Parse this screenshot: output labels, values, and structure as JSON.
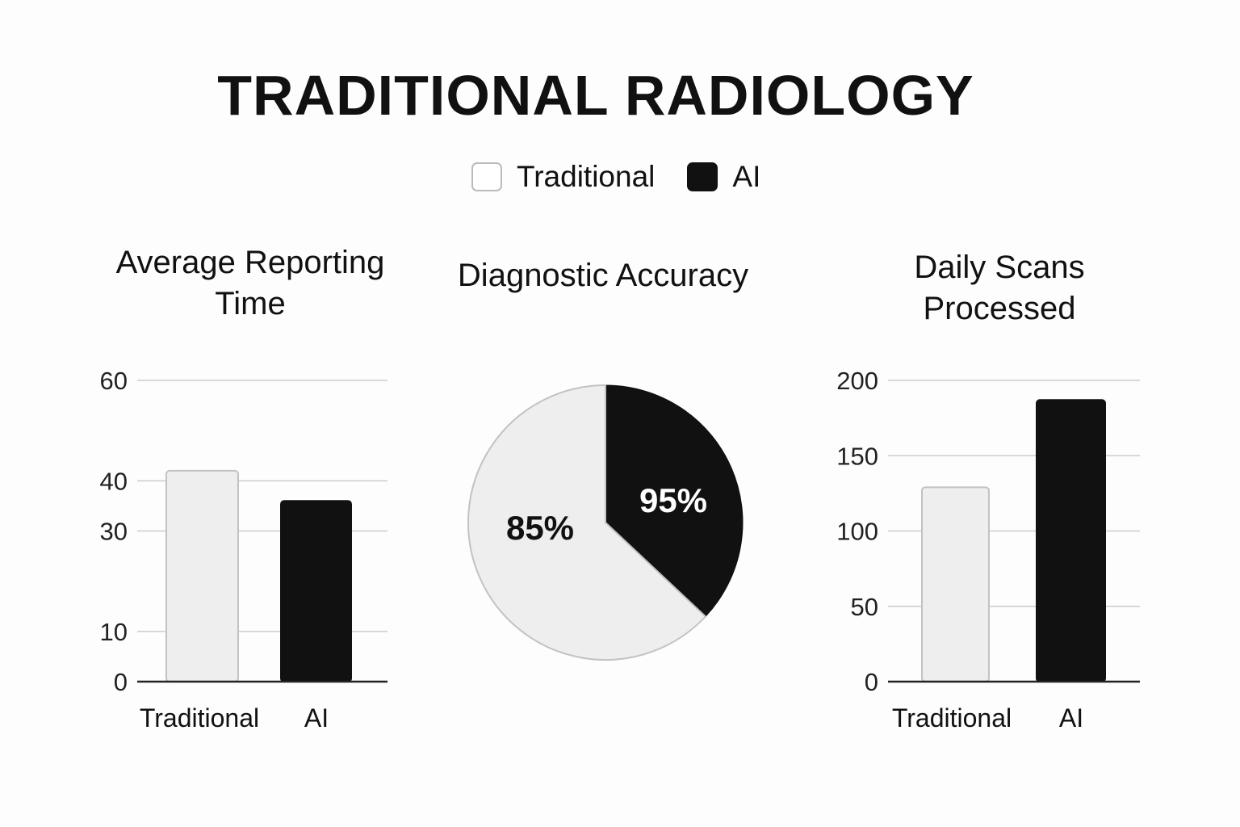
{
  "title": "TRADITIONAL RADIOLOGY",
  "legend": {
    "items": [
      {
        "label": "Traditional",
        "color": "#ffffff"
      },
      {
        "label": "AI",
        "color": "#111111"
      }
    ]
  },
  "panels": {
    "left_title": "Average Reporting Time",
    "mid_title": "Diagnostic Accuracy",
    "right_title": "Daily Scans Processed"
  },
  "colors": {
    "traditional_fill": "#eeeeee",
    "traditional_stroke": "#c2c2c2",
    "ai_fill": "#111111",
    "grid": "#cccccc",
    "axis": "#222222"
  },
  "chart_data": [
    {
      "type": "bar",
      "title": "Average Reporting Time",
      "categories": [
        "Traditional",
        "AI"
      ],
      "values": [
        42,
        36
      ],
      "yticks": [
        0,
        10,
        30,
        40,
        60
      ],
      "ylim": [
        0,
        60
      ],
      "grid": true
    },
    {
      "type": "pie",
      "title": "Diagnostic Accuracy",
      "slices": [
        {
          "label": "85%",
          "value": 63,
          "series": "Traditional"
        },
        {
          "label": "95%",
          "value": 37,
          "series": "AI"
        }
      ]
    },
    {
      "type": "bar",
      "title": "Daily Scans Processed",
      "categories": [
        "Traditional",
        "AI"
      ],
      "values": [
        129,
        187
      ],
      "yticks": [
        0,
        50,
        100,
        150,
        200
      ],
      "ylim": [
        0,
        200
      ],
      "grid": true
    }
  ]
}
